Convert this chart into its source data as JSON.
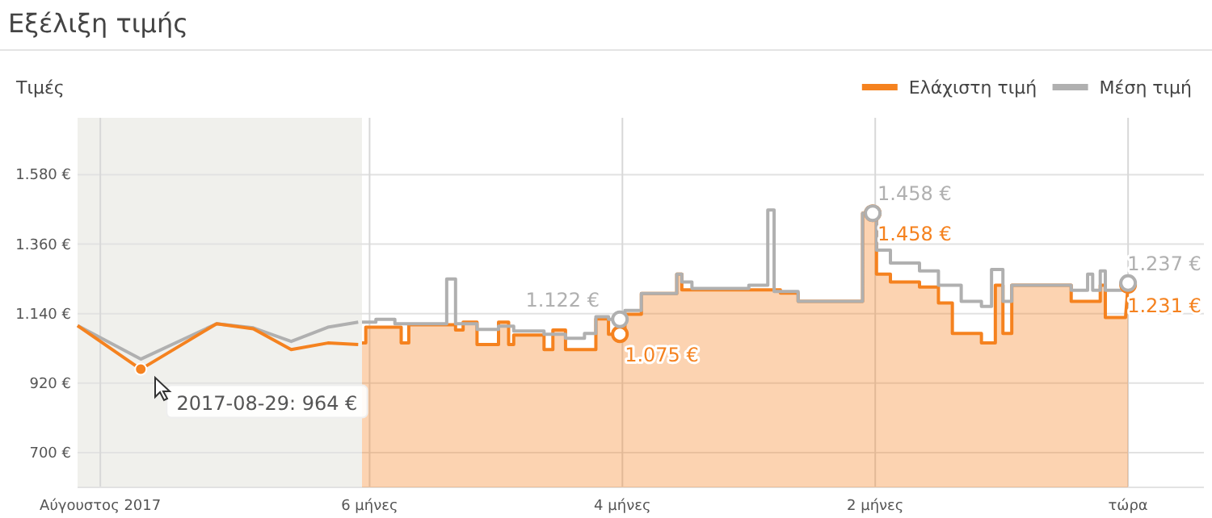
{
  "chart_data": {
    "type": "line",
    "title": "Εξέλιξη τιμής",
    "ylabel": "Τιμές",
    "xlim": [
      -8.31,
      0.6
    ],
    "xticks": [
      {
        "value": -8.13,
        "label": "Αύγουστος 2017"
      },
      {
        "value": -6,
        "label": "6 μήνες"
      },
      {
        "value": -4,
        "label": "4 μήνες"
      },
      {
        "value": -2,
        "label": "2 μήνες"
      },
      {
        "value": 0,
        "label": "τώρα"
      }
    ],
    "ylim": [
      590,
      1760
    ],
    "yticks": [
      {
        "value": 700,
        "label": "700 €"
      },
      {
        "value": 920,
        "label": "920 €"
      },
      {
        "value": 1140,
        "label": "1.140 €"
      },
      {
        "value": 1360,
        "label": "1.360 €"
      },
      {
        "value": 1580,
        "label": "1.580 €"
      }
    ],
    "grid": true,
    "legend": "top right",
    "bands": [
      {
        "axis": "x",
        "from": -8.31,
        "to": -6.06,
        "color": "#f0f0ec"
      }
    ],
    "annotations": [
      {
        "text": "2017-08-29: 964 €",
        "x": -7.81,
        "y": 964
      }
    ],
    "series": [
      {
        "color": "#b0b0b0",
        "x": [
          -8.31,
          -7.81,
          -7.21,
          -6.92,
          -6.62,
          -6.33,
          -6.09
        ],
        "values": [
          1102,
          996,
          1108,
          1095,
          1052,
          1097,
          1113
        ]
      },
      {
        "color": "#f5821f",
        "x": [
          -8.31,
          -7.81,
          -7.21,
          -6.92,
          -6.62,
          -6.33,
          -6.09
        ],
        "values": [
          1102,
          964,
          1108,
          1092,
          1026,
          1047,
          1042
        ]
      },
      {
        "type": "area",
        "name": "Ελάχιστη τιμή",
        "color": "#f5821f",
        "x": [
          -6.06,
          -6.03,
          -6.03,
          -5.75,
          -5.75,
          -5.69,
          -5.69,
          -5.32,
          -5.32,
          -5.26,
          -5.26,
          -5.15,
          -5.15,
          -4.98,
          -4.98,
          -4.9,
          -4.9,
          -4.86,
          -4.86,
          -4.62,
          -4.62,
          -4.55,
          -4.55,
          -4.45,
          -4.45,
          -4.21,
          -4.21,
          -4.11,
          -4.11,
          -4.02,
          -3.98,
          -3.98,
          -3.85,
          -3.85,
          -3.57,
          -3.57,
          -3.53,
          -3.53,
          -2.75,
          -2.75,
          -2.61,
          -2.61,
          -2.1,
          -2.1,
          -2.02,
          -1.99,
          -1.99,
          -1.88,
          -1.88,
          -1.65,
          -1.65,
          -1.5,
          -1.5,
          -1.39,
          -1.39,
          -1.16,
          -1.16,
          -1.05,
          -1.05,
          -0.99,
          -0.99,
          -0.92,
          -0.92,
          -0.45,
          -0.45,
          -0.22,
          -0.22,
          -0.18,
          -0.18,
          -0.02,
          0
        ],
        "values": [
          1047,
          1047,
          1097,
          1097,
          1047,
          1047,
          1105,
          1105,
          1088,
          1088,
          1113,
          1113,
          1042,
          1042,
          1113,
          1113,
          1042,
          1042,
          1072,
          1072,
          1026,
          1026,
          1088,
          1088,
          1026,
          1026,
          1123,
          1123,
          1075,
          1075,
          1075,
          1138,
          1138,
          1204,
          1204,
          1265,
          1265,
          1215,
          1215,
          1205,
          1205,
          1179,
          1179,
          1458,
          1458,
          1458,
          1265,
          1265,
          1240,
          1240,
          1224,
          1224,
          1174,
          1174,
          1077,
          1077,
          1047,
          1047,
          1230,
          1230,
          1077,
          1077,
          1230,
          1230,
          1179,
          1179,
          1230,
          1230,
          1128,
          1128,
          1231
        ],
        "value_labels": [
          null,
          null,
          null,
          null,
          null,
          null,
          null,
          null,
          null,
          null,
          null,
          null,
          null,
          null,
          null,
          null,
          null,
          null,
          null,
          null,
          null,
          null,
          null,
          null,
          null,
          null,
          null,
          null,
          null,
          "1.075 €",
          null,
          null,
          null,
          null,
          null,
          null,
          null,
          null,
          null,
          null,
          null,
          null,
          null,
          null,
          "1.458 €",
          null,
          null,
          null,
          null,
          null,
          null,
          null,
          null,
          null,
          null,
          null,
          null,
          null,
          null,
          null,
          null,
          null,
          null,
          null,
          null,
          null,
          null,
          null,
          null,
          null,
          "1.231 €"
        ]
      },
      {
        "type": "step",
        "name": "Μέση τιμή",
        "color": "#b0b0b0",
        "x": [
          -6.06,
          -5.95,
          -5.8,
          -5.39,
          -5.32,
          -5.15,
          -4.98,
          -4.86,
          -4.62,
          -4.45,
          -4.3,
          -4.21,
          -4.11,
          -4.02,
          -3.98,
          -3.85,
          -3.57,
          -3.53,
          -3.45,
          -3.0,
          -2.85,
          -2.8,
          -2.61,
          -2.1,
          -2.02,
          -1.99,
          -1.88,
          -1.65,
          -1.5,
          -1.32,
          -1.16,
          -1.08,
          -0.99,
          -0.92,
          -0.45,
          -0.32,
          -0.28,
          -0.22,
          -0.18,
          0
        ],
        "values": [
          1113,
          1122,
          1108,
          1250,
          1108,
          1090,
          1100,
          1085,
          1075,
          1062,
          1077,
          1130,
          1122,
          1122,
          1150,
          1204,
          1265,
          1240,
          1220,
          1230,
          1468,
          1210,
          1179,
          1458,
          1458,
          1341,
          1300,
          1275,
          1230,
          1179,
          1163,
          1280,
          1179,
          1230,
          1214,
          1265,
          1214,
          1275,
          1214,
          1237
        ],
        "value_labels": [
          null,
          null,
          null,
          null,
          null,
          null,
          null,
          null,
          null,
          null,
          null,
          null,
          null,
          "1.122 €",
          null,
          null,
          null,
          null,
          null,
          null,
          null,
          null,
          null,
          null,
          "1.458 €",
          null,
          null,
          null,
          null,
          null,
          null,
          null,
          null,
          null,
          null,
          null,
          null,
          null,
          null,
          "1.237 €"
        ]
      }
    ]
  }
}
